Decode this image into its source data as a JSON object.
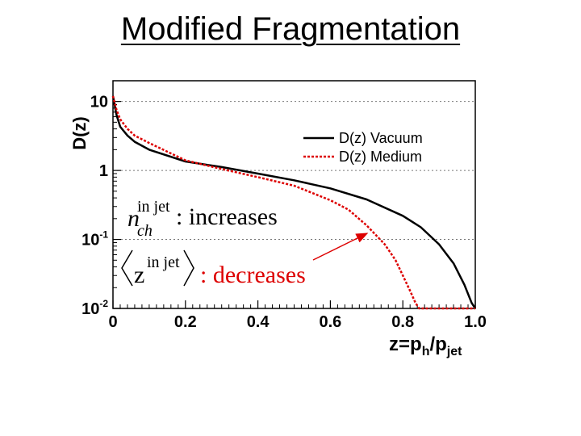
{
  "slide": {
    "title": "Modified Fragmentation"
  },
  "chart_data": {
    "type": "line",
    "xlabel_main": "z=p",
    "xlabel_sub1": "h",
    "xlabel_mid": "/p",
    "xlabel_sub2": "jet",
    "ylabel": "D(z)",
    "xlim": [
      0,
      1.0
    ],
    "ylim_log10": [
      -2,
      1.3
    ],
    "y_scale": "log",
    "grid": "horizontal dotted",
    "legend_position": "top-right",
    "x_ticks": [
      "0",
      "0.2",
      "0.4",
      "0.6",
      "0.8",
      "1.0"
    ],
    "y_ticks": [
      {
        "base": "10",
        "exp": ""
      },
      {
        "base": "1",
        "exp": ""
      },
      {
        "base": "10",
        "exp": "-1"
      },
      {
        "base": "10",
        "exp": "-2"
      }
    ],
    "series": [
      {
        "name": "D(z) Vacuum",
        "color": "#000000",
        "style": "solid",
        "x": [
          0.0,
          0.01,
          0.02,
          0.04,
          0.06,
          0.1,
          0.2,
          0.3,
          0.4,
          0.5,
          0.6,
          0.7,
          0.8,
          0.85,
          0.9,
          0.94,
          0.97,
          0.99,
          1.0
        ],
        "y": [
          12,
          6.3,
          4.3,
          3.2,
          2.6,
          2.0,
          1.35,
          1.12,
          0.9,
          0.72,
          0.55,
          0.38,
          0.22,
          0.15,
          0.085,
          0.045,
          0.022,
          0.012,
          0.01
        ]
      },
      {
        "name": "D(z) Medium",
        "color": "#dd0000",
        "style": "dotted",
        "x": [
          0.0,
          0.01,
          0.02,
          0.04,
          0.06,
          0.1,
          0.2,
          0.3,
          0.4,
          0.5,
          0.6,
          0.65,
          0.7,
          0.75,
          0.78,
          0.8,
          0.82,
          0.835,
          0.845,
          0.85,
          1.0
        ],
        "y": [
          12,
          7.5,
          5.5,
          4.0,
          3.2,
          2.5,
          1.4,
          1.05,
          0.8,
          0.6,
          0.37,
          0.27,
          0.16,
          0.085,
          0.05,
          0.03,
          0.018,
          0.012,
          0.01,
          0.01,
          0.01
        ]
      }
    ],
    "annotations": {
      "line1_symbol": "n",
      "line1_sub": "ch",
      "line1_sup": "in jet",
      "line1_text": ": increases",
      "line2_symbol": "z",
      "line2_sup": "in jet",
      "line2_text": ": decreases",
      "arrow_color": "#dd0000"
    }
  }
}
